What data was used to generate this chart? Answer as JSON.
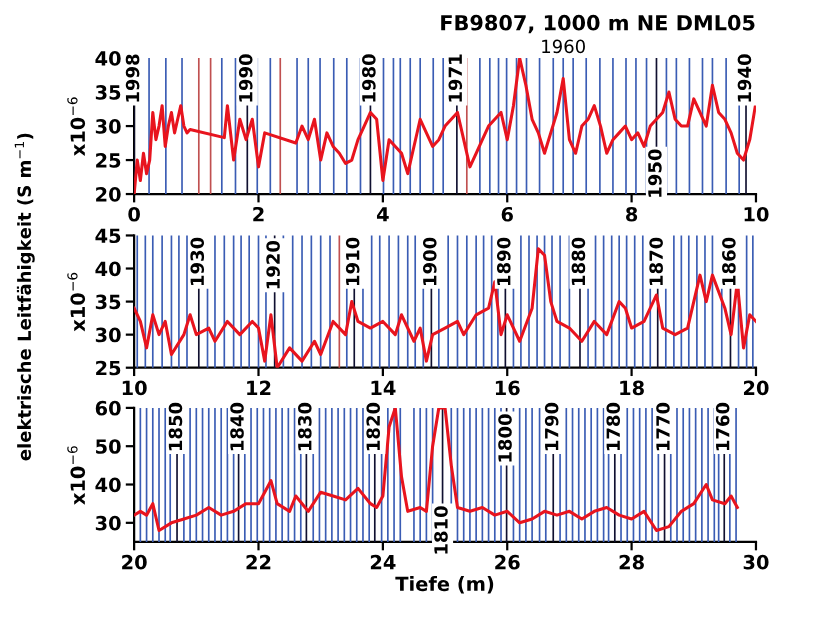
{
  "chart_data": [
    {
      "type": "line",
      "title": "FB9807, 1000 m NE DML05",
      "ylabel": "x10$^{−6}$",
      "annotations": [
        "elektrische Leitfähigkeit (S m$^{−1}$)",
        {
          "text": "1998",
          "x": 0.0,
          "y": 37
        },
        {
          "text": "1990",
          "x": 1.82,
          "y": 37
        },
        {
          "text": "1980",
          "x": 3.8,
          "y": 37
        },
        {
          "text": "1971",
          "x": 5.19,
          "y": 37
        },
        "1960",
        {
          "text": "1950",
          "x": 8.4,
          "y": 23
        },
        {
          "text": "1940",
          "x": 9.84,
          "y": 37
        }
      ],
      "xlim": [
        0,
        10
      ],
      "xticks": [
        0,
        2,
        4,
        6,
        8,
        10
      ],
      "ylim": [
        20,
        40
      ],
      "yticks": [
        20,
        25,
        30,
        35,
        40
      ],
      "series": [
        {
          "color": "#e8141e",
          "x": [
            0.0,
            0.05,
            0.1,
            0.15,
            0.2,
            0.25,
            0.3,
            0.35,
            0.4,
            0.45,
            0.5,
            0.55,
            0.6,
            0.65,
            0.7,
            0.75,
            0.8,
            0.85,
            0.9,
            1.45,
            1.5,
            1.6,
            1.7,
            1.8,
            1.9,
            2.0,
            2.1,
            2.6,
            2.7,
            2.8,
            2.9,
            3.0,
            3.1,
            3.2,
            3.3,
            3.4,
            3.5,
            3.6,
            3.7,
            3.8,
            3.9,
            4.0,
            4.1,
            4.2,
            4.3,
            4.4,
            4.5,
            4.6,
            4.7,
            4.8,
            4.9,
            5.0,
            5.1,
            5.2,
            5.3,
            5.4,
            5.5,
            5.6,
            5.7,
            5.8,
            5.9,
            6.0,
            6.1,
            6.2,
            6.3,
            6.4,
            6.5,
            6.6,
            6.7,
            6.8,
            6.9,
            7.0,
            7.1,
            7.2,
            7.3,
            7.4,
            7.5,
            7.6,
            7.7,
            7.8,
            7.9,
            8.0,
            8.1,
            8.2,
            8.3,
            8.4,
            8.5,
            8.6,
            8.7,
            8.8,
            8.9,
            9.0,
            9.1,
            9.2,
            9.3,
            9.4,
            9.5,
            9.6,
            9.7,
            9.8,
            9.9,
            10.0
          ],
          "values": [
            20,
            25,
            22,
            26,
            23,
            25,
            32,
            28,
            30,
            33,
            27,
            30,
            32,
            29,
            31,
            33,
            30,
            29,
            29.5,
            28.3,
            33,
            25,
            31,
            28,
            31,
            24,
            29,
            27.5,
            30,
            28,
            31,
            25,
            29,
            27,
            26,
            24.5,
            25,
            28,
            30,
            32,
            31,
            22,
            28,
            27,
            26,
            23,
            27,
            31,
            29,
            27,
            28,
            30,
            31,
            32,
            28,
            24,
            26,
            28,
            30,
            31,
            32,
            28,
            33,
            40,
            36,
            31,
            29,
            26,
            29,
            32,
            37,
            28,
            26,
            30,
            31,
            33,
            30,
            26,
            28,
            29,
            30,
            28,
            29,
            27,
            30,
            31,
            32,
            35,
            31,
            30,
            30,
            34,
            32,
            30,
            36,
            32,
            31,
            29,
            26,
            25,
            28,
            33.5
          ]
        }
      ],
      "ref_lines": [
        {
          "axis": "x",
          "value": 0.0,
          "color": "#101030"
        },
        {
          "axis": "x",
          "value": 0.24,
          "color": "#3a5cb4"
        },
        {
          "axis": "x",
          "value": 0.51,
          "color": "#3a5cb4"
        },
        {
          "axis": "x",
          "value": 0.77,
          "color": "#3a5cb4"
        },
        {
          "axis": "x",
          "value": 1.04,
          "color": "#c05050"
        },
        {
          "axis": "x",
          "value": 1.23,
          "color": "#c05050"
        },
        {
          "axis": "x",
          "value": 1.41,
          "color": "#3a5cb4"
        },
        {
          "axis": "x",
          "value": 1.63,
          "color": "#3a5cb4"
        },
        {
          "axis": "x",
          "value": 1.82,
          "color": "#101030"
        },
        {
          "axis": "x",
          "value": 1.98,
          "color": "#3a5cb4"
        },
        {
          "axis": "x",
          "value": 2.19,
          "color": "#3a5cb4"
        },
        {
          "axis": "x",
          "value": 2.35,
          "color": "#c05050"
        },
        {
          "axis": "x",
          "value": 2.62,
          "color": "#3a5cb4"
        },
        {
          "axis": "x",
          "value": 2.8,
          "color": "#3a5cb4"
        },
        {
          "axis": "x",
          "value": 2.99,
          "color": "#3a5cb4"
        },
        {
          "axis": "x",
          "value": 3.21,
          "color": "#3a5cb4"
        },
        {
          "axis": "x",
          "value": 3.42,
          "color": "#3a5cb4"
        },
        {
          "axis": "x",
          "value": 3.64,
          "color": "#3a5cb4"
        },
        {
          "axis": "x",
          "value": 3.8,
          "color": "#101030"
        },
        {
          "axis": "x",
          "value": 4.01,
          "color": "#3a5cb4"
        },
        {
          "axis": "x",
          "value": 4.17,
          "color": "#3a5cb4"
        },
        {
          "axis": "x",
          "value": 4.28,
          "color": "#3a5cb4"
        },
        {
          "axis": "x",
          "value": 4.44,
          "color": "#3a5cb4"
        },
        {
          "axis": "x",
          "value": 4.6,
          "color": "#3a5cb4"
        },
        {
          "axis": "x",
          "value": 4.81,
          "color": "#3a5cb4"
        },
        {
          "axis": "x",
          "value": 4.97,
          "color": "#3a5cb4"
        },
        {
          "axis": "x",
          "value": 5.19,
          "color": "#101030"
        },
        {
          "axis": "x",
          "value": 5.35,
          "color": "#c05050"
        },
        {
          "axis": "x",
          "value": 5.56,
          "color": "#3a5cb4"
        },
        {
          "axis": "x",
          "value": 5.72,
          "color": "#3a5cb4"
        },
        {
          "axis": "x",
          "value": 5.86,
          "color": "#3a5cb4"
        },
        {
          "axis": "x",
          "value": 5.99,
          "color": "#3a5cb4"
        },
        {
          "axis": "x",
          "value": 6.15,
          "color": "#3a5cb4"
        },
        {
          "axis": "x",
          "value": 6.31,
          "color": "#3a5cb4"
        },
        {
          "axis": "x",
          "value": 6.52,
          "color": "#3a5cb4"
        },
        {
          "axis": "x",
          "value": 6.74,
          "color": "#3a5cb4"
        },
        {
          "axis": "x",
          "value": 6.9,
          "color": "#3a5cb4"
        },
        {
          "axis": "x",
          "value": 7.06,
          "color": "#3a5cb4"
        },
        {
          "axis": "x",
          "value": 7.27,
          "color": "#3a5cb4"
        },
        {
          "axis": "x",
          "value": 7.49,
          "color": "#3a5cb4"
        },
        {
          "axis": "x",
          "value": 7.7,
          "color": "#3a5cb4"
        },
        {
          "axis": "x",
          "value": 7.91,
          "color": "#3a5cb4"
        },
        {
          "axis": "x",
          "value": 8.07,
          "color": "#3a5cb4"
        },
        {
          "axis": "x",
          "value": 8.24,
          "color": "#3a5cb4"
        },
        {
          "axis": "x",
          "value": 8.4,
          "color": "#101030"
        },
        {
          "axis": "x",
          "value": 8.56,
          "color": "#3a5cb4"
        },
        {
          "axis": "x",
          "value": 8.72,
          "color": "#3a5cb4"
        },
        {
          "axis": "x",
          "value": 8.93,
          "color": "#3a5cb4"
        },
        {
          "axis": "x",
          "value": 9.14,
          "color": "#3a5cb4"
        },
        {
          "axis": "x",
          "value": 9.3,
          "color": "#3a5cb4"
        },
        {
          "axis": "x",
          "value": 9.52,
          "color": "#3a5cb4"
        },
        {
          "axis": "x",
          "value": 9.73,
          "color": "#3a5cb4"
        },
        {
          "axis": "x",
          "value": 9.84,
          "color": "#101030"
        }
      ]
    },
    {
      "type": "line",
      "ylabel": "x10$^{−6}$",
      "annotations": [
        {
          "text": "1930",
          "x": 11.04,
          "y": 41
        },
        {
          "text": "1920",
          "x": 12.26,
          "y": 40.5
        },
        {
          "text": "1910",
          "x": 13.54,
          "y": 41
        },
        {
          "text": "1900",
          "x": 14.78,
          "y": 41
        },
        {
          "text": "1890",
          "x": 15.97,
          "y": 41
        },
        {
          "text": "1880",
          "x": 17.17,
          "y": 41
        },
        {
          "text": "1870",
          "x": 18.42,
          "y": 41
        },
        {
          "text": "1860",
          "x": 19.59,
          "y": 41
        }
      ],
      "xlim": [
        10,
        20
      ],
      "xticks": [
        10,
        12,
        14,
        16,
        18,
        20
      ],
      "ylim": [
        25,
        45
      ],
      "yticks": [
        25,
        30,
        35,
        40,
        45
      ],
      "series": [
        {
          "color": "#e8141e",
          "x": [
            10.0,
            10.1,
            10.2,
            10.3,
            10.4,
            10.5,
            10.6,
            10.8,
            10.9,
            11.0,
            11.2,
            11.3,
            11.5,
            11.7,
            11.9,
            12.0,
            12.1,
            12.2,
            12.3,
            12.5,
            12.7,
            12.9,
            13.0,
            13.2,
            13.4,
            13.5,
            13.6,
            13.8,
            14.0,
            14.2,
            14.3,
            14.5,
            14.6,
            14.7,
            14.8,
            15.0,
            15.2,
            15.3,
            15.5,
            15.7,
            15.8,
            15.9,
            16.0,
            16.2,
            16.4,
            16.5,
            16.6,
            16.7,
            16.8,
            17.0,
            17.2,
            17.4,
            17.6,
            17.8,
            17.9,
            18.0,
            18.2,
            18.4,
            18.5,
            18.7,
            18.9,
            19.1,
            19.2,
            19.3,
            19.5,
            19.6,
            19.7,
            19.8,
            19.9,
            20.0
          ],
          "values": [
            34,
            32,
            28,
            33,
            30,
            32,
            27,
            30,
            33,
            30,
            31,
            29,
            32,
            30,
            32,
            31,
            26,
            33,
            25,
            28,
            26,
            29,
            27,
            32,
            30,
            35,
            32,
            31,
            32,
            30,
            33,
            29,
            31,
            26,
            30,
            31,
            32,
            30,
            33,
            34,
            38,
            30,
            33,
            29,
            34,
            43,
            42,
            35,
            32,
            31,
            29,
            32,
            30,
            35,
            34,
            31,
            32,
            36,
            31,
            30,
            31,
            39,
            35,
            39,
            34,
            30,
            38,
            28,
            33,
            32
          ]
        }
      ],
      "ref_lines": [
        {
          "axis": "x",
          "value": 10.05,
          "color": "#3a5cb4"
        },
        {
          "axis": "x",
          "value": 10.18,
          "color": "#3a5cb4"
        },
        {
          "axis": "x",
          "value": 10.3,
          "color": "#3a5cb4"
        },
        {
          "axis": "x",
          "value": 10.45,
          "color": "#3a5cb4"
        },
        {
          "axis": "x",
          "value": 10.6,
          "color": "#3a5cb4"
        },
        {
          "axis": "x",
          "value": 10.72,
          "color": "#3a5cb4"
        },
        {
          "axis": "x",
          "value": 10.85,
          "color": "#3a5cb4"
        },
        {
          "axis": "x",
          "value": 11.04,
          "color": "#101030"
        },
        {
          "axis": "x",
          "value": 11.18,
          "color": "#3a5cb4"
        },
        {
          "axis": "x",
          "value": 11.3,
          "color": "#3a5cb4"
        },
        {
          "axis": "x",
          "value": 11.45,
          "color": "#3a5cb4"
        },
        {
          "axis": "x",
          "value": 11.6,
          "color": "#3a5cb4"
        },
        {
          "axis": "x",
          "value": 11.72,
          "color": "#3a5cb4"
        },
        {
          "axis": "x",
          "value": 11.85,
          "color": "#3a5cb4"
        },
        {
          "axis": "x",
          "value": 12.0,
          "color": "#3a5cb4"
        },
        {
          "axis": "x",
          "value": 12.12,
          "color": "#3a5cb4"
        },
        {
          "axis": "x",
          "value": 12.26,
          "color": "#101030"
        },
        {
          "axis": "x",
          "value": 12.4,
          "color": "#3a5cb4"
        },
        {
          "axis": "x",
          "value": 12.55,
          "color": "#3a5cb4"
        },
        {
          "axis": "x",
          "value": 12.7,
          "color": "#3a5cb4"
        },
        {
          "axis": "x",
          "value": 12.85,
          "color": "#3a5cb4"
        },
        {
          "axis": "x",
          "value": 13.0,
          "color": "#3a5cb4"
        },
        {
          "axis": "x",
          "value": 13.15,
          "color": "#3a5cb4"
        },
        {
          "axis": "x",
          "value": 13.3,
          "color": "#c05050"
        },
        {
          "axis": "x",
          "value": 13.42,
          "color": "#3a5cb4"
        },
        {
          "axis": "x",
          "value": 13.54,
          "color": "#101030"
        },
        {
          "axis": "x",
          "value": 13.68,
          "color": "#3a5cb4"
        },
        {
          "axis": "x",
          "value": 13.82,
          "color": "#3a5cb4"
        },
        {
          "axis": "x",
          "value": 13.95,
          "color": "#3a5cb4"
        },
        {
          "axis": "x",
          "value": 14.1,
          "color": "#3a5cb4"
        },
        {
          "axis": "x",
          "value": 14.25,
          "color": "#3a5cb4"
        },
        {
          "axis": "x",
          "value": 14.4,
          "color": "#3a5cb4"
        },
        {
          "axis": "x",
          "value": 14.52,
          "color": "#3a5cb4"
        },
        {
          "axis": "x",
          "value": 14.65,
          "color": "#3a5cb4"
        },
        {
          "axis": "x",
          "value": 14.78,
          "color": "#101030"
        },
        {
          "axis": "x",
          "value": 14.9,
          "color": "#3a5cb4"
        },
        {
          "axis": "x",
          "value": 15.05,
          "color": "#3a5cb4"
        },
        {
          "axis": "x",
          "value": 15.2,
          "color": "#3a5cb4"
        },
        {
          "axis": "x",
          "value": 15.35,
          "color": "#3a5cb4"
        },
        {
          "axis": "x",
          "value": 15.5,
          "color": "#3a5cb4"
        },
        {
          "axis": "x",
          "value": 15.62,
          "color": "#3a5cb4"
        },
        {
          "axis": "x",
          "value": 15.75,
          "color": "#3a5cb4"
        },
        {
          "axis": "x",
          "value": 15.85,
          "color": "#3a5cb4"
        },
        {
          "axis": "x",
          "value": 15.97,
          "color": "#101030"
        },
        {
          "axis": "x",
          "value": 16.1,
          "color": "#3a5cb4"
        },
        {
          "axis": "x",
          "value": 16.22,
          "color": "#3a5cb4"
        },
        {
          "axis": "x",
          "value": 16.35,
          "color": "#3a5cb4"
        },
        {
          "axis": "x",
          "value": 16.48,
          "color": "#3a5cb4"
        },
        {
          "axis": "x",
          "value": 16.6,
          "color": "#3a5cb4"
        },
        {
          "axis": "x",
          "value": 16.72,
          "color": "#3a5cb4"
        },
        {
          "axis": "x",
          "value": 16.85,
          "color": "#3a5cb4"
        },
        {
          "axis": "x",
          "value": 17.0,
          "color": "#3a5cb4"
        },
        {
          "axis": "x",
          "value": 17.17,
          "color": "#101030"
        },
        {
          "axis": "x",
          "value": 17.3,
          "color": "#3a5cb4"
        },
        {
          "axis": "x",
          "value": 17.42,
          "color": "#3a5cb4"
        },
        {
          "axis": "x",
          "value": 17.55,
          "color": "#3a5cb4"
        },
        {
          "axis": "x",
          "value": 17.68,
          "color": "#3a5cb4"
        },
        {
          "axis": "x",
          "value": 17.8,
          "color": "#3a5cb4"
        },
        {
          "axis": "x",
          "value": 17.92,
          "color": "#3a5cb4"
        },
        {
          "axis": "x",
          "value": 18.05,
          "color": "#3a5cb4"
        },
        {
          "axis": "x",
          "value": 18.18,
          "color": "#3a5cb4"
        },
        {
          "axis": "x",
          "value": 18.3,
          "color": "#3a5cb4"
        },
        {
          "axis": "x",
          "value": 18.42,
          "color": "#101030"
        },
        {
          "axis": "x",
          "value": 18.55,
          "color": "#3a5cb4"
        },
        {
          "axis": "x",
          "value": 18.68,
          "color": "#3a5cb4"
        },
        {
          "axis": "x",
          "value": 18.8,
          "color": "#3a5cb4"
        },
        {
          "axis": "x",
          "value": 18.92,
          "color": "#3a5cb4"
        },
        {
          "axis": "x",
          "value": 19.05,
          "color": "#3a5cb4"
        },
        {
          "axis": "x",
          "value": 19.18,
          "color": "#3a5cb4"
        },
        {
          "axis": "x",
          "value": 19.3,
          "color": "#3a5cb4"
        },
        {
          "axis": "x",
          "value": 19.45,
          "color": "#3a5cb4"
        },
        {
          "axis": "x",
          "value": 19.59,
          "color": "#101030"
        },
        {
          "axis": "x",
          "value": 19.72,
          "color": "#3a5cb4"
        },
        {
          "axis": "x",
          "value": 19.85,
          "color": "#3a5cb4"
        },
        {
          "axis": "x",
          "value": 19.95,
          "color": "#3a5cb4"
        }
      ]
    },
    {
      "type": "line",
      "ylabel": "x10$^{−6}$",
      "xlabel": "Tiefe (m)",
      "annotations": [
        {
          "text": "1850",
          "x": 20.69,
          "y": 55
        },
        {
          "text": "1840",
          "x": 21.68,
          "y": 55
        },
        {
          "text": "1830",
          "x": 22.77,
          "y": 55
        },
        {
          "text": "1820",
          "x": 23.87,
          "y": 55
        },
        {
          "text": "1810",
          "x": 24.96,
          "y": 28
        },
        {
          "text": "1800",
          "x": 25.99,
          "y": 52
        },
        {
          "text": "1790",
          "x": 26.74,
          "y": 55
        },
        {
          "text": "1780",
          "x": 27.73,
          "y": 55
        },
        {
          "text": "1770",
          "x": 28.53,
          "y": 55
        },
        {
          "text": "1760",
          "x": 29.49,
          "y": 55
        }
      ],
      "xlim": [
        20,
        30
      ],
      "xticks": [
        20,
        22,
        24,
        26,
        28,
        30
      ],
      "ylim": [
        25,
        60
      ],
      "yticks": [
        30,
        40,
        50,
        60
      ],
      "series": [
        {
          "color": "#e8141e",
          "x": [
            20.0,
            20.1,
            20.2,
            20.3,
            20.4,
            20.6,
            20.8,
            21.0,
            21.2,
            21.4,
            21.6,
            21.8,
            22.0,
            22.2,
            22.3,
            22.5,
            22.6,
            22.8,
            23.0,
            23.2,
            23.4,
            23.6,
            23.8,
            23.9,
            24.0,
            24.1,
            24.2,
            24.3,
            24.4,
            24.6,
            24.7,
            24.8,
            24.9,
            25.0,
            25.1,
            25.2,
            25.4,
            25.6,
            25.8,
            26.0,
            26.2,
            26.4,
            26.6,
            26.8,
            27.0,
            27.2,
            27.4,
            27.6,
            27.8,
            28.0,
            28.2,
            28.4,
            28.6,
            28.8,
            29.0,
            29.2,
            29.3,
            29.5,
            29.6,
            29.7
          ],
          "values": [
            32,
            33,
            32,
            35,
            28,
            30,
            31,
            32,
            34,
            32,
            33,
            35,
            35,
            41,
            35,
            33,
            37,
            33,
            38,
            37,
            36,
            39,
            35,
            34,
            37,
            55,
            60,
            42,
            33,
            34,
            33,
            50,
            60,
            60,
            45,
            34,
            33,
            34,
            32,
            33,
            30,
            31,
            33,
            32,
            33,
            31,
            33,
            34,
            32,
            31,
            33,
            28,
            29,
            33,
            35,
            40,
            36,
            35,
            37,
            34
          ]
        }
      ],
      "ref_lines": [
        {
          "axis": "x",
          "value": 20.1,
          "color": "#3a5cb4"
        },
        {
          "axis": "x",
          "value": 20.2,
          "color": "#3a5cb4"
        },
        {
          "axis": "x",
          "value": 20.3,
          "color": "#3a5cb4"
        },
        {
          "axis": "x",
          "value": 20.4,
          "color": "#3a5cb4"
        },
        {
          "axis": "x",
          "value": 20.5,
          "color": "#3a5cb4"
        },
        {
          "axis": "x",
          "value": 20.58,
          "color": "#3a5cb4"
        },
        {
          "axis": "x",
          "value": 20.69,
          "color": "#101030"
        },
        {
          "axis": "x",
          "value": 20.8,
          "color": "#3a5cb4"
        },
        {
          "axis": "x",
          "value": 20.9,
          "color": "#3a5cb4"
        },
        {
          "axis": "x",
          "value": 21.0,
          "color": "#3a5cb4"
        },
        {
          "axis": "x",
          "value": 21.1,
          "color": "#3a5cb4"
        },
        {
          "axis": "x",
          "value": 21.2,
          "color": "#3a5cb4"
        },
        {
          "axis": "x",
          "value": 21.3,
          "color": "#3a5cb4"
        },
        {
          "axis": "x",
          "value": 21.4,
          "color": "#3a5cb4"
        },
        {
          "axis": "x",
          "value": 21.5,
          "color": "#3a5cb4"
        },
        {
          "axis": "x",
          "value": 21.6,
          "color": "#3a5cb4"
        },
        {
          "axis": "x",
          "value": 21.68,
          "color": "#101030"
        },
        {
          "axis": "x",
          "value": 21.78,
          "color": "#3a5cb4"
        },
        {
          "axis": "x",
          "value": 21.88,
          "color": "#3a5cb4"
        },
        {
          "axis": "x",
          "value": 21.98,
          "color": "#3a5cb4"
        },
        {
          "axis": "x",
          "value": 22.08,
          "color": "#3a5cb4"
        },
        {
          "axis": "x",
          "value": 22.18,
          "color": "#3a5cb4"
        },
        {
          "axis": "x",
          "value": 22.28,
          "color": "#3a5cb4"
        },
        {
          "axis": "x",
          "value": 22.38,
          "color": "#3a5cb4"
        },
        {
          "axis": "x",
          "value": 22.48,
          "color": "#3a5cb4"
        },
        {
          "axis": "x",
          "value": 22.58,
          "color": "#3a5cb4"
        },
        {
          "axis": "x",
          "value": 22.68,
          "color": "#3a5cb4"
        },
        {
          "axis": "x",
          "value": 22.77,
          "color": "#101030"
        },
        {
          "axis": "x",
          "value": 22.88,
          "color": "#3a5cb4"
        },
        {
          "axis": "x",
          "value": 22.98,
          "color": "#3a5cb4"
        },
        {
          "axis": "x",
          "value": 23.08,
          "color": "#3a5cb4"
        },
        {
          "axis": "x",
          "value": 23.18,
          "color": "#3a5cb4"
        },
        {
          "axis": "x",
          "value": 23.28,
          "color": "#3a5cb4"
        },
        {
          "axis": "x",
          "value": 23.38,
          "color": "#3a5cb4"
        },
        {
          "axis": "x",
          "value": 23.48,
          "color": "#3a5cb4"
        },
        {
          "axis": "x",
          "value": 23.58,
          "color": "#3a5cb4"
        },
        {
          "axis": "x",
          "value": 23.68,
          "color": "#3a5cb4"
        },
        {
          "axis": "x",
          "value": 23.78,
          "color": "#3a5cb4"
        },
        {
          "axis": "x",
          "value": 23.87,
          "color": "#101030"
        },
        {
          "axis": "x",
          "value": 23.98,
          "color": "#3a5cb4"
        },
        {
          "axis": "x",
          "value": 24.08,
          "color": "#3a5cb4"
        },
        {
          "axis": "x",
          "value": 24.18,
          "color": "#3a5cb4"
        },
        {
          "axis": "x",
          "value": 24.28,
          "color": "#3a5cb4"
        },
        {
          "axis": "x",
          "value": 24.5,
          "color": "#3a5cb4"
        },
        {
          "axis": "x",
          "value": 24.6,
          "color": "#3a5cb4"
        },
        {
          "axis": "x",
          "value": 24.7,
          "color": "#3a5cb4"
        },
        {
          "axis": "x",
          "value": 24.8,
          "color": "#3a5cb4"
        },
        {
          "axis": "x",
          "value": 24.96,
          "color": "#101030"
        },
        {
          "axis": "x",
          "value": 25.1,
          "color": "#3a5cb4"
        },
        {
          "axis": "x",
          "value": 25.2,
          "color": "#3a5cb4"
        },
        {
          "axis": "x",
          "value": 25.3,
          "color": "#3a5cb4"
        },
        {
          "axis": "x",
          "value": 25.4,
          "color": "#3a5cb4"
        },
        {
          "axis": "x",
          "value": 25.5,
          "color": "#3a5cb4"
        },
        {
          "axis": "x",
          "value": 25.6,
          "color": "#3a5cb4"
        },
        {
          "axis": "x",
          "value": 25.7,
          "color": "#3a5cb4"
        },
        {
          "axis": "x",
          "value": 25.8,
          "color": "#3a5cb4"
        },
        {
          "axis": "x",
          "value": 25.9,
          "color": "#3a5cb4"
        },
        {
          "axis": "x",
          "value": 25.99,
          "color": "#101030"
        },
        {
          "axis": "x",
          "value": 26.1,
          "color": "#3a5cb4"
        },
        {
          "axis": "x",
          "value": 26.2,
          "color": "#3a5cb4"
        },
        {
          "axis": "x",
          "value": 26.3,
          "color": "#3a5cb4"
        },
        {
          "axis": "x",
          "value": 26.4,
          "color": "#3a5cb4"
        },
        {
          "axis": "x",
          "value": 26.52,
          "color": "#3a5cb4"
        },
        {
          "axis": "x",
          "value": 26.62,
          "color": "#3a5cb4"
        },
        {
          "axis": "x",
          "value": 26.74,
          "color": "#101030"
        },
        {
          "axis": "x",
          "value": 26.85,
          "color": "#3a5cb4"
        },
        {
          "axis": "x",
          "value": 26.95,
          "color": "#3a5cb4"
        },
        {
          "axis": "x",
          "value": 27.05,
          "color": "#3a5cb4"
        },
        {
          "axis": "x",
          "value": 27.15,
          "color": "#3a5cb4"
        },
        {
          "axis": "x",
          "value": 27.25,
          "color": "#3a5cb4"
        },
        {
          "axis": "x",
          "value": 27.35,
          "color": "#3a5cb4"
        },
        {
          "axis": "x",
          "value": 27.45,
          "color": "#3a5cb4"
        },
        {
          "axis": "x",
          "value": 27.55,
          "color": "#3a5cb4"
        },
        {
          "axis": "x",
          "value": 27.63,
          "color": "#3a5cb4"
        },
        {
          "axis": "x",
          "value": 27.73,
          "color": "#101030"
        },
        {
          "axis": "x",
          "value": 27.83,
          "color": "#3a5cb4"
        },
        {
          "axis": "x",
          "value": 27.93,
          "color": "#3a5cb4"
        },
        {
          "axis": "x",
          "value": 28.03,
          "color": "#3a5cb4"
        },
        {
          "axis": "x",
          "value": 28.13,
          "color": "#3a5cb4"
        },
        {
          "axis": "x",
          "value": 28.23,
          "color": "#3a5cb4"
        },
        {
          "axis": "x",
          "value": 28.33,
          "color": "#3a5cb4"
        },
        {
          "axis": "x",
          "value": 28.43,
          "color": "#3a5cb4"
        },
        {
          "axis": "x",
          "value": 28.53,
          "color": "#101030"
        },
        {
          "axis": "x",
          "value": 28.63,
          "color": "#3a5cb4"
        },
        {
          "axis": "x",
          "value": 28.73,
          "color": "#3a5cb4"
        },
        {
          "axis": "x",
          "value": 28.83,
          "color": "#3a5cb4"
        },
        {
          "axis": "x",
          "value": 28.93,
          "color": "#3a5cb4"
        },
        {
          "axis": "x",
          "value": 29.03,
          "color": "#3a5cb4"
        },
        {
          "axis": "x",
          "value": 29.13,
          "color": "#3a5cb4"
        },
        {
          "axis": "x",
          "value": 29.23,
          "color": "#3a5cb4"
        },
        {
          "axis": "x",
          "value": 29.33,
          "color": "#3a5cb4"
        },
        {
          "axis": "x",
          "value": 29.4,
          "color": "#3a5cb4"
        },
        {
          "axis": "x",
          "value": 29.49,
          "color": "#101030"
        },
        {
          "axis": "x",
          "value": 29.58,
          "color": "#3a5cb4"
        },
        {
          "axis": "x",
          "value": 29.68,
          "color": "#3a5cb4"
        }
      ]
    }
  ]
}
